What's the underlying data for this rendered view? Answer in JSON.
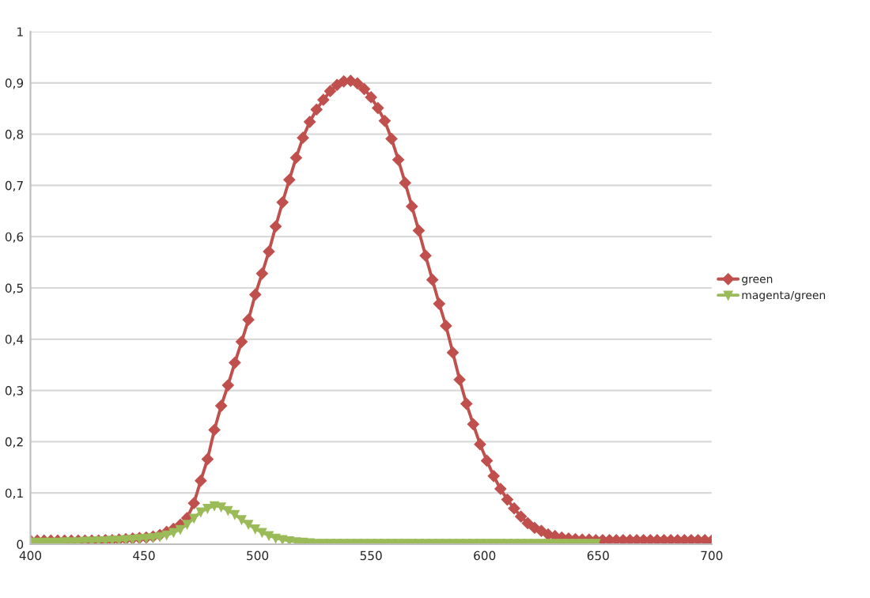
{
  "chart_data": {
    "type": "line",
    "xlim": [
      400,
      700
    ],
    "ylim": [
      0,
      1
    ],
    "xticks": [
      400,
      450,
      500,
      550,
      600,
      650,
      700
    ],
    "yticks": [
      0,
      {
        "value": 0.1,
        "label": "0,1"
      },
      {
        "value": 0.2,
        "label": "0,2"
      },
      {
        "value": 0.3,
        "label": "0,3"
      },
      {
        "value": 0.4,
        "label": "0,4"
      },
      {
        "value": 0.5,
        "label": "0,5"
      },
      {
        "value": 0.6,
        "label": "0,6"
      },
      {
        "value": 0.7,
        "label": "0,7"
      },
      {
        "value": 0.8,
        "label": "0,8"
      },
      {
        "value": 0.9,
        "label": "0,9"
      },
      1
    ],
    "grid": "y",
    "legend": "right",
    "line_style": "solid",
    "series": [
      {
        "name": "green",
        "color": "#c0504d",
        "marker": "diamond",
        "x": [
          400,
          403,
          406,
          409,
          412,
          415,
          418,
          421,
          424,
          427,
          430,
          433,
          436,
          439,
          442,
          445,
          448,
          451,
          454,
          457,
          460,
          463,
          466,
          469,
          472,
          475,
          478,
          481,
          484,
          487,
          490,
          493,
          496,
          499,
          502,
          505,
          508,
          511,
          514,
          517,
          520,
          523,
          526,
          529,
          532,
          535,
          538,
          541,
          544,
          547,
          550,
          553,
          556,
          559,
          562,
          565,
          568,
          571,
          574,
          577,
          580,
          583,
          586,
          589,
          592,
          595,
          598,
          601,
          604,
          607,
          610,
          613,
          616,
          619,
          622,
          625,
          628,
          631,
          634,
          637,
          640,
          643,
          646,
          649,
          652,
          655,
          658,
          661,
          664,
          667,
          670,
          673,
          676,
          679,
          682,
          685,
          688,
          691,
          694,
          697,
          700
        ],
        "values": [
          0.007,
          0.007,
          0.007,
          0.007,
          0.007,
          0.007,
          0.007,
          0.007,
          0.007,
          0.007,
          0.007,
          0.008,
          0.008,
          0.009,
          0.01,
          0.011,
          0.012,
          0.013,
          0.015,
          0.018,
          0.024,
          0.03,
          0.038,
          0.051,
          0.08,
          0.124,
          0.166,
          0.223,
          0.27,
          0.31,
          0.354,
          0.395,
          0.438,
          0.487,
          0.528,
          0.571,
          0.62,
          0.667,
          0.711,
          0.754,
          0.793,
          0.824,
          0.848,
          0.867,
          0.884,
          0.896,
          0.903,
          0.904,
          0.899,
          0.888,
          0.872,
          0.851,
          0.826,
          0.791,
          0.75,
          0.705,
          0.659,
          0.612,
          0.563,
          0.516,
          0.469,
          0.426,
          0.374,
          0.321,
          0.274,
          0.234,
          0.195,
          0.163,
          0.133,
          0.108,
          0.087,
          0.07,
          0.054,
          0.041,
          0.032,
          0.026,
          0.019,
          0.016,
          0.013,
          0.011,
          0.01,
          0.009,
          0.009,
          0.008,
          0.008,
          0.008,
          0.008,
          0.008,
          0.008,
          0.008,
          0.008,
          0.008,
          0.008,
          0.008,
          0.008,
          0.008,
          0.008,
          0.008,
          0.008,
          0.008,
          0.007
        ]
      },
      {
        "name": "magenta/green",
        "color": "#9bbb59",
        "marker": "triangle",
        "x": [
          400,
          403,
          406,
          409,
          412,
          415,
          418,
          421,
          424,
          427,
          430,
          433,
          436,
          439,
          442,
          445,
          448,
          451,
          454,
          457,
          460,
          463,
          466,
          469,
          472,
          475,
          478,
          481,
          484,
          487,
          490,
          493,
          496,
          499,
          502,
          505,
          508,
          511,
          514,
          517,
          520,
          523,
          526,
          529,
          532,
          535,
          538,
          541,
          544,
          547,
          550,
          553,
          556,
          559,
          562,
          565,
          568,
          571,
          574,
          577,
          580,
          583,
          586,
          589,
          592,
          595,
          598,
          601,
          604,
          607,
          610,
          613,
          616,
          619,
          622,
          625,
          628,
          631,
          634,
          637,
          640,
          643,
          646,
          649
        ],
        "values": [
          0.004,
          0.004,
          0.004,
          0.004,
          0.004,
          0.005,
          0.005,
          0.005,
          0.006,
          0.006,
          0.007,
          0.007,
          0.008,
          0.008,
          0.009,
          0.01,
          0.011,
          0.012,
          0.013,
          0.015,
          0.018,
          0.023,
          0.029,
          0.039,
          0.051,
          0.063,
          0.07,
          0.075,
          0.073,
          0.066,
          0.058,
          0.048,
          0.039,
          0.03,
          0.023,
          0.017,
          0.012,
          0.009,
          0.007,
          0.005,
          0.004,
          0.003,
          0.002,
          0.002,
          0.002,
          0.002,
          0.002,
          0.002,
          0.002,
          0.002,
          0.002,
          0.002,
          0.002,
          0.002,
          0.002,
          0.002,
          0.002,
          0.002,
          0.002,
          0.002,
          0.002,
          0.002,
          0.002,
          0.002,
          0.002,
          0.002,
          0.002,
          0.002,
          0.002,
          0.002,
          0.002,
          0.002,
          0.002,
          0.002,
          0.002,
          0.002,
          0.002,
          0.002,
          0.002,
          0.002,
          0.002,
          0.002,
          0.002,
          0.002
        ]
      }
    ]
  }
}
